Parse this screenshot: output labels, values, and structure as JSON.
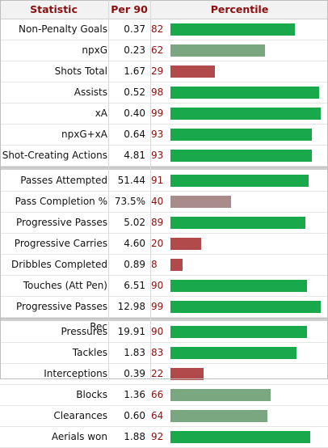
{
  "headers": {
    "statistic": "Statistic",
    "per90": "Per 90",
    "percentile": "Percentile"
  },
  "colors": {
    "high": "#19a84a",
    "mid_good": "#7aa77f",
    "mid_bad": "#a98b8b",
    "low": "#b14b4b"
  },
  "groups": [
    {
      "rows": [
        {
          "stat": "Non-Penalty Goals",
          "per90": "0.37",
          "pct": "82",
          "tier": "high"
        },
        {
          "stat": "npxG",
          "per90": "0.23",
          "pct": "62",
          "tier": "mid_good"
        },
        {
          "stat": "Shots Total",
          "per90": "1.67",
          "pct": "29",
          "tier": "low"
        },
        {
          "stat": "Assists",
          "per90": "0.52",
          "pct": "98",
          "tier": "high"
        },
        {
          "stat": "xA",
          "per90": "0.40",
          "pct": "99",
          "tier": "high"
        },
        {
          "stat": "npxG+xA",
          "per90": "0.64",
          "pct": "93",
          "tier": "high"
        },
        {
          "stat": "Shot-Creating Actions",
          "per90": "4.81",
          "pct": "93",
          "tier": "high"
        }
      ]
    },
    {
      "rows": [
        {
          "stat": "Passes Attempted",
          "per90": "51.44",
          "pct": "91",
          "tier": "high"
        },
        {
          "stat": "Pass Completion %",
          "per90": "73.5%",
          "pct": "40",
          "tier": "mid_bad"
        },
        {
          "stat": "Progressive Passes",
          "per90": "5.02",
          "pct": "89",
          "tier": "high"
        },
        {
          "stat": "Progressive Carries",
          "per90": "4.60",
          "pct": "20",
          "tier": "low"
        },
        {
          "stat": "Dribbles Completed",
          "per90": "0.89",
          "pct": "8",
          "tier": "low"
        },
        {
          "stat": "Touches (Att Pen)",
          "per90": "6.51",
          "pct": "90",
          "tier": "high"
        },
        {
          "stat": "Progressive Passes Rec",
          "per90": "12.98",
          "pct": "99",
          "tier": "high"
        }
      ]
    },
    {
      "rows": [
        {
          "stat": "Pressures",
          "per90": "19.91",
          "pct": "90",
          "tier": "high"
        },
        {
          "stat": "Tackles",
          "per90": "1.83",
          "pct": "83",
          "tier": "high"
        },
        {
          "stat": "Interceptions",
          "per90": "0.39",
          "pct": "22",
          "tier": "low"
        },
        {
          "stat": "Blocks",
          "per90": "1.36",
          "pct": "66",
          "tier": "mid_good"
        },
        {
          "stat": "Clearances",
          "per90": "0.60",
          "pct": "64",
          "tier": "mid_good"
        },
        {
          "stat": "Aerials won",
          "per90": "1.88",
          "pct": "92",
          "tier": "high"
        }
      ]
    }
  ]
}
